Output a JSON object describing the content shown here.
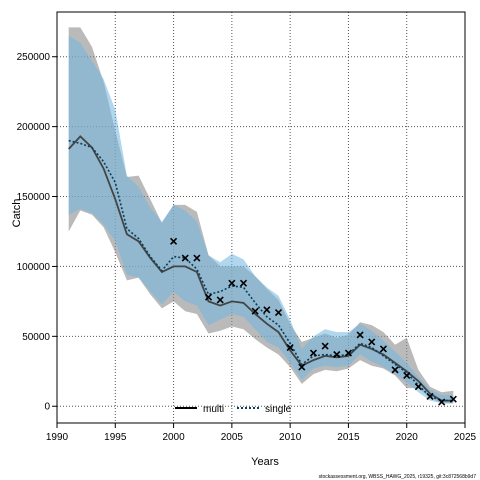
{
  "chart_data": {
    "type": "line",
    "title": "",
    "xlabel": "Years",
    "ylabel": "Catch",
    "xlim": [
      1990,
      2025
    ],
    "ylim": [
      -12000,
      282000
    ],
    "x_ticks": [
      1990,
      1995,
      2000,
      2005,
      2010,
      2015,
      2020,
      2025
    ],
    "y_ticks": [
      0,
      50000,
      100000,
      150000,
      200000,
      250000
    ],
    "grid": true,
    "legend_position": "bottom",
    "footnote": "stockassessment.org, WBSS_HAWG_2025, r19325, git:3c872568b9d7",
    "colors": {
      "multi_line": "#444444",
      "multi_band": "#8c8c8c",
      "single_line": "#0b3e5a",
      "single_band": "#6fb6e0",
      "observed": "#000000"
    },
    "years": [
      1991,
      1992,
      1993,
      1994,
      1995,
      1996,
      1997,
      1998,
      1999,
      2000,
      2001,
      2002,
      2003,
      2004,
      2005,
      2006,
      2007,
      2008,
      2009,
      2010,
      2011,
      2012,
      2013,
      2014,
      2015,
      2016,
      2017,
      2018,
      2019,
      2020,
      2021,
      2022,
      2023,
      2024
    ],
    "series": [
      {
        "name": "multi",
        "style": "solid",
        "values": [
          184000,
          193000,
          185000,
          170000,
          148000,
          123000,
          118000,
          106000,
          96000,
          100000,
          100000,
          96000,
          75000,
          72000,
          75000,
          74000,
          66000,
          59000,
          53000,
          40000,
          29000,
          33000,
          36000,
          35000,
          36000,
          44000,
          41000,
          37000,
          31000,
          25000,
          18000,
          9000,
          4000,
          4000
        ],
        "lower": [
          125000,
          140000,
          137000,
          128000,
          110000,
          90000,
          92000,
          80000,
          70000,
          75000,
          68000,
          66000,
          52000,
          54000,
          57000,
          55000,
          48000,
          42000,
          37000,
          28000,
          16000,
          23000,
          26000,
          25000,
          27000,
          33000,
          29000,
          27000,
          22000,
          13000,
          13000,
          6000,
          2000,
          2000
        ],
        "upper": [
          271000,
          271000,
          257000,
          232000,
          197000,
          164000,
          165000,
          148000,
          131000,
          144000,
          144000,
          139000,
          108000,
          100000,
          100000,
          100000,
          93000,
          84000,
          76000,
          59000,
          46000,
          49000,
          52000,
          49000,
          51000,
          60000,
          58000,
          53000,
          44000,
          49000,
          26000,
          14000,
          10000,
          11000
        ]
      },
      {
        "name": "single",
        "style": "dotted",
        "values": [
          190000,
          188000,
          185000,
          175000,
          160000,
          127000,
          120000,
          107000,
          97000,
          107000,
          106000,
          98000,
          80000,
          82000,
          86000,
          85000,
          74000,
          64000,
          58000,
          45000,
          30000,
          36000,
          37000,
          36000,
          37000,
          45000,
          42000,
          36000,
          30000,
          24000,
          15000,
          7000,
          4000,
          4000
        ],
        "lower": [
          137000,
          141000,
          138000,
          130000,
          118000,
          94000,
          92000,
          82000,
          73000,
          82000,
          75000,
          72000,
          58000,
          62000,
          66000,
          64000,
          55000,
          46000,
          42000,
          31000,
          19000,
          27000,
          29000,
          28000,
          29000,
          37000,
          32000,
          28000,
          23000,
          17000,
          10000,
          4000,
          2000,
          2000
        ],
        "upper": [
          265000,
          260000,
          247000,
          234000,
          212000,
          165000,
          157000,
          142000,
          132000,
          144000,
          140000,
          132000,
          108000,
          103000,
          109000,
          105000,
          93000,
          85000,
          79000,
          62000,
          41000,
          50000,
          55000,
          53000,
          53000,
          59000,
          54000,
          47000,
          39000,
          31000,
          21000,
          12000,
          8000,
          8000
        ]
      }
    ],
    "observed": {
      "marker": "cross",
      "years": [
        2000,
        2001,
        2002,
        2003,
        2004,
        2005,
        2006,
        2007,
        2008,
        2009,
        2010,
        2011,
        2012,
        2013,
        2014,
        2015,
        2016,
        2017,
        2018,
        2019,
        2020,
        2021,
        2022,
        2023,
        2024
      ],
      "values": [
        118000,
        106000,
        106000,
        78000,
        76000,
        88000,
        88000,
        68000,
        69000,
        67000,
        42000,
        28000,
        38000,
        43000,
        37000,
        38000,
        51000,
        46000,
        41000,
        26000,
        22000,
        14000,
        7000,
        3000,
        5000
      ]
    },
    "legend": [
      {
        "label": "multi",
        "series": "multi"
      },
      {
        "label": "single",
        "series": "single"
      }
    ]
  }
}
